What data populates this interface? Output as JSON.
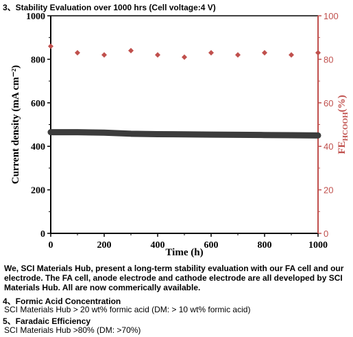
{
  "chart_data": {
    "type": "scatter",
    "title": "3、Stability Evaluation over 1000 hrs (Cell voltage:4 V)",
    "xlabel": "Time (h)",
    "ylabel": "Current density (mA cm⁻²)",
    "ylabel2_main": "FE",
    "ylabel2_sub": "HCOOH",
    "ylabel2_tail": "(%)",
    "xlim": [
      0,
      1000
    ],
    "ylim": [
      0,
      1000
    ],
    "ylim2": [
      0,
      100
    ],
    "x_ticks": [
      "0",
      "200",
      "400",
      "600",
      "800",
      "1000"
    ],
    "y_ticks": [
      "0",
      "200",
      "400",
      "600",
      "800",
      "1000"
    ],
    "y2_ticks": [
      "0",
      "20",
      "40",
      "60",
      "80",
      "100"
    ],
    "grid": false,
    "series": [
      {
        "axis": "left",
        "style": "thick-line",
        "color": "#3c3c3c",
        "x": [
          0,
          100,
          200,
          300,
          400,
          500,
          600,
          700,
          800,
          900,
          1000
        ],
        "values": [
          465,
          465,
          463,
          458,
          456,
          455,
          454,
          453,
          452,
          451,
          450
        ]
      },
      {
        "axis": "right",
        "style": "diamond",
        "color": "#c0504d",
        "x": [
          0,
          100,
          200,
          300,
          400,
          500,
          600,
          700,
          800,
          900,
          1000
        ],
        "values": [
          86,
          83,
          82,
          84,
          82,
          81,
          83,
          82,
          83,
          82,
          83
        ]
      }
    ]
  },
  "text": {
    "para1": "We, SCI Materials Hub, present a long-term stability evaluation with our FA cell and our electrode. The FA cell, anode electrode and cathode electrode are all developed by SCI Materials Hub. All are now commerically available.",
    "section4_title": "4、Formic Acid Concentration",
    "section4_text": "SCI Materials Hub > 20 wt% formic acid  (DM: > 10 wt% formic acid)",
    "section5_title": "5、Faradaic Efficiency",
    "section5_text": "SCI Materials Hub >80%  (DM: >70%)"
  }
}
